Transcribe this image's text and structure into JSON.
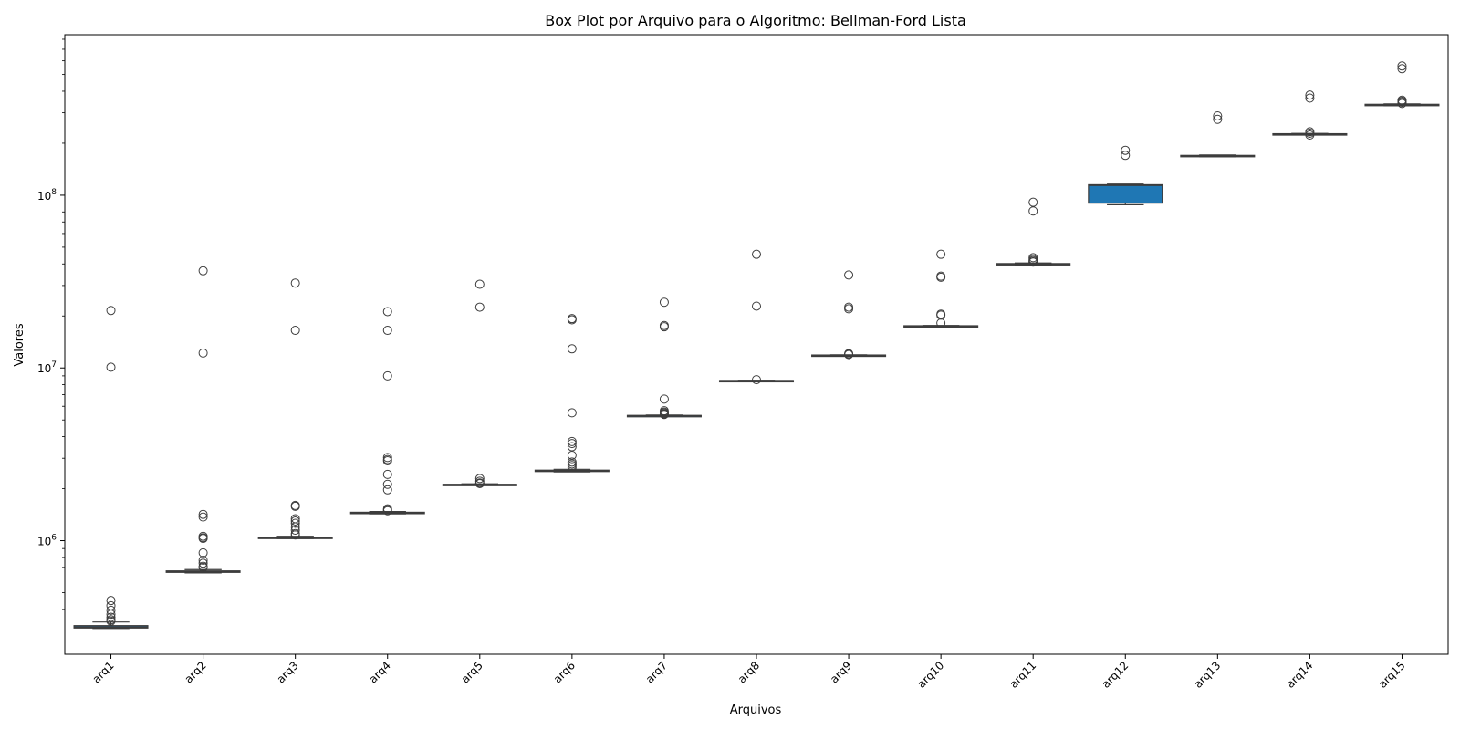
{
  "chart_data": {
    "type": "box",
    "title": "Box Plot por Arquivo para o Algoritmo: Bellman-Ford Lista",
    "xlabel": "Arquivos",
    "ylabel": "Valores",
    "yscale": "log",
    "ylim": [
      220000,
      850000000
    ],
    "ytick_values": [
      1000000,
      10000000,
      100000000
    ],
    "ytick_labels": [
      {
        "base": "10",
        "exp": "6"
      },
      {
        "base": "10",
        "exp": "7"
      },
      {
        "base": "10",
        "exp": "8"
      }
    ],
    "box_color": "#1f77b4",
    "grid": false,
    "categories": [
      "arq1",
      "arq2",
      "arq3",
      "arq4",
      "arq5",
      "arq6",
      "arq7",
      "arq8",
      "arq9",
      "arq10",
      "arq11",
      "arq12",
      "arq13",
      "arq14",
      "arq15"
    ],
    "boxes": [
      {
        "name": "arq1",
        "whislo": 310000,
        "q1": 312000,
        "med": 316000,
        "q3": 322000,
        "whishi": 338000,
        "fliers": [
          21500000,
          10100000,
          450000,
          420000,
          395000,
          375000,
          360000,
          348000,
          342000
        ]
      },
      {
        "name": "arq2",
        "whislo": 650000,
        "q1": 655000,
        "med": 660000,
        "q3": 668000,
        "whishi": 680000,
        "fliers": [
          36500000,
          12200000,
          1420000,
          1370000,
          1060000,
          1040000,
          1030000,
          850000,
          770000,
          740000,
          710000,
          700000
        ]
      },
      {
        "name": "arq3",
        "whislo": 1030000,
        "q1": 1035000,
        "med": 1040000,
        "q3": 1047000,
        "whishi": 1060000,
        "fliers": [
          31000000,
          16500000,
          1600000,
          1580000,
          1340000,
          1300000,
          1260000,
          1200000,
          1150000,
          1100000,
          1080000
        ]
      },
      {
        "name": "arq4",
        "whislo": 1430000,
        "q1": 1440000,
        "med": 1450000,
        "q3": 1460000,
        "whishi": 1475000,
        "fliers": [
          21200000,
          16500000,
          9000000,
          3030000,
          2950000,
          2900000,
          2420000,
          2120000,
          1970000,
          1530000,
          1510000,
          1490000
        ]
      },
      {
        "name": "arq5",
        "whislo": 2090000,
        "q1": 2100000,
        "med": 2110000,
        "q3": 2120000,
        "whishi": 2135000,
        "fliers": [
          30500000,
          22500000,
          2290000,
          2210000,
          2160000,
          2140000
        ]
      },
      {
        "name": "arq6",
        "whislo": 2500000,
        "q1": 2520000,
        "med": 2540000,
        "q3": 2560000,
        "whishi": 2590000,
        "fliers": [
          19300000,
          19000000,
          12900000,
          5500000,
          3750000,
          3650000,
          3500000,
          3120000,
          2850000,
          2780000,
          2720000,
          2650000
        ]
      },
      {
        "name": "arq7",
        "whislo": 5250000,
        "q1": 5270000,
        "med": 5290000,
        "q3": 5310000,
        "whishi": 5340000,
        "fliers": [
          24000000,
          17600000,
          17300000,
          6600000,
          5650000,
          5550000,
          5480000,
          5420000,
          5380000
        ]
      },
      {
        "name": "arq8",
        "whislo": 8400000,
        "q1": 8420000,
        "med": 8440000,
        "q3": 8460000,
        "whishi": 8480000,
        "fliers": [
          45500000,
          22800000,
          8550000
        ]
      },
      {
        "name": "arq9",
        "whislo": 11750000,
        "q1": 11800000,
        "med": 11840000,
        "q3": 11880000,
        "whishi": 11920000,
        "fliers": [
          34500000,
          22500000,
          22000000,
          12100000,
          12000000,
          11950000
        ]
      },
      {
        "name": "arq10",
        "whislo": 17400000,
        "q1": 17450000,
        "med": 17500000,
        "q3": 17550000,
        "whishi": 17600000,
        "fliers": [
          45500000,
          34000000,
          33500000,
          20500000,
          20200000,
          18200000
        ]
      },
      {
        "name": "arq11",
        "whislo": 39500000,
        "q1": 39800000,
        "med": 40000000,
        "q3": 40200000,
        "whishi": 40500000,
        "fliers": [
          91000000,
          81000000,
          43500000,
          42500000,
          41800000,
          41200000,
          41000000
        ]
      },
      {
        "name": "arq12",
        "whislo": 88000000,
        "q1": 90000000,
        "med": 114000000,
        "q3": 115000000,
        "whishi": 116000000,
        "fliers": [
          182000000,
          170000000
        ]
      },
      {
        "name": "arq13",
        "whislo": 167000000,
        "q1": 168000000,
        "med": 169000000,
        "q3": 170000000,
        "whishi": 171000000,
        "fliers": [
          288000000,
          275000000
        ]
      },
      {
        "name": "arq14",
        "whislo": 224000000,
        "q1": 225000000,
        "med": 226000000,
        "q3": 227000000,
        "whishi": 228000000,
        "fliers": [
          380000000,
          365000000,
          233000000,
          228500000,
          223000000
        ]
      },
      {
        "name": "arq15",
        "whislo": 330000000,
        "q1": 332000000,
        "med": 334000000,
        "q3": 336000000,
        "whishi": 338000000,
        "fliers": [
          560000000,
          540000000,
          355000000,
          350000000,
          345000000,
          340000000
        ]
      }
    ]
  }
}
